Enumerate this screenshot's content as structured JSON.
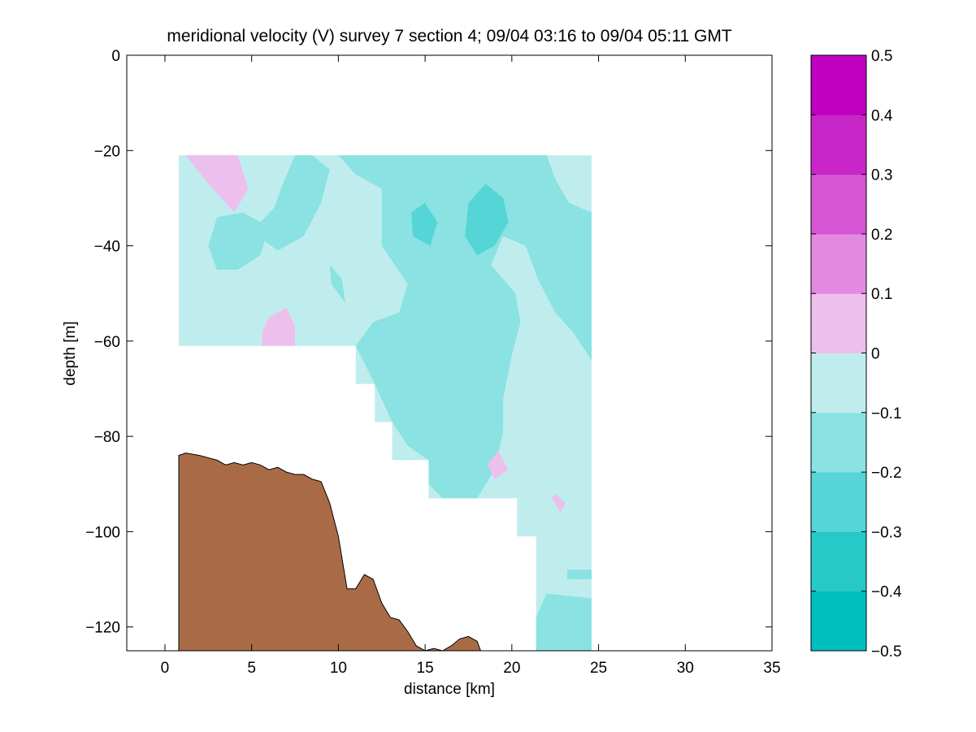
{
  "chart_data": {
    "type": "contour",
    "title": "meridional velocity (V) survey 7 section 4; 09/04 03:16 to 09/04 05:11 GMT",
    "xlabel": "distance [km]",
    "ylabel": "depth [m]",
    "xlim": [
      -2.2,
      35
    ],
    "ylim": [
      -125,
      0
    ],
    "xticks": [
      0,
      5,
      10,
      15,
      20,
      25,
      30,
      35
    ],
    "xtick_labels": [
      "0",
      "5",
      "10",
      "15",
      "20",
      "25",
      "30",
      "35"
    ],
    "yticks": [
      0,
      -20,
      -40,
      -60,
      -80,
      -100,
      -120
    ],
    "ytick_labels": [
      "0",
      "−20",
      "−40",
      "−60",
      "−80",
      "−100",
      "−120"
    ],
    "grid": false,
    "colorbar": {
      "levels": [
        -0.5,
        -0.4,
        -0.3,
        -0.2,
        -0.1,
        0,
        0.1,
        0.2,
        0.3,
        0.4,
        0.5
      ],
      "tick_labels": [
        "−0.5",
        "−0.4",
        "−0.3",
        "−0.2",
        "−0.1",
        "0",
        "0.1",
        "0.2",
        "0.3",
        "0.4",
        "0.5"
      ],
      "colors": [
        "#00bfbf",
        "#26c8c8",
        "#55d5d5",
        "#8ae2e2",
        "#bfeded",
        "#edbfed",
        "#e28ae2",
        "#d555d5",
        "#c826c8",
        "#bf00bf"
      ]
    },
    "data_region": {
      "x_range_km": [
        0.8,
        24.6
      ],
      "top_depth_m": -21,
      "lower_boundary": [
        [
          0.8,
          -61
        ],
        [
          11,
          -61
        ],
        [
          11,
          -69
        ],
        [
          12.1,
          -69
        ],
        [
          12.1,
          -77
        ],
        [
          13.1,
          -77
        ],
        [
          13.1,
          -85
        ],
        [
          15.2,
          -85
        ],
        [
          15.2,
          -93
        ],
        [
          20.3,
          -93
        ],
        [
          20.3,
          -101
        ],
        [
          21.4,
          -101
        ],
        [
          21.4,
          -125
        ]
      ],
      "background_level": "-0.1 to 0",
      "regions": [
        {
          "level": "-0.2 to -0.1",
          "polygon": [
            [
              10,
              -21
            ],
            [
              13,
              -21
            ],
            [
              17,
              -21
            ],
            [
              20.5,
              -21
            ],
            [
              22,
              -21
            ],
            [
              22.5,
              -26
            ],
            [
              23.3,
              -31
            ],
            [
              24.6,
              -33
            ],
            [
              24.6,
              -50
            ],
            [
              24.6,
              -64
            ],
            [
              23.5,
              -58
            ],
            [
              22.5,
              -54
            ],
            [
              21.5,
              -47
            ],
            [
              20.8,
              -40
            ],
            [
              19.5,
              -38
            ],
            [
              18.8,
              -44
            ],
            [
              20.2,
              -50
            ],
            [
              20.5,
              -56
            ],
            [
              20,
              -63
            ],
            [
              19.5,
              -72
            ],
            [
              19.5,
              -79
            ],
            [
              19,
              -87
            ],
            [
              18,
              -93
            ],
            [
              16,
              -93
            ],
            [
              15.2,
              -90
            ],
            [
              15.2,
              -85
            ],
            [
              14,
              -82
            ],
            [
              13.1,
              -77
            ],
            [
              12.1,
              -69
            ],
            [
              11,
              -61
            ],
            [
              12,
              -56
            ],
            [
              13.5,
              -54
            ],
            [
              14,
              -48
            ],
            [
              12.5,
              -40
            ],
            [
              12.5,
              -33
            ],
            [
              12.5,
              -28
            ],
            [
              11,
              -25
            ]
          ]
        },
        {
          "level": "-0.2 to -0.1",
          "polygon": [
            [
              7.5,
              -21
            ],
            [
              8.5,
              -21
            ],
            [
              9.5,
              -24
            ],
            [
              9,
              -31
            ],
            [
              8,
              -38
            ],
            [
              6.5,
              -41
            ],
            [
              5,
              -37
            ],
            [
              6.3,
              -32
            ],
            [
              6.8,
              -27
            ]
          ]
        },
        {
          "level": "-0.2 to -0.1",
          "polygon": [
            [
              3,
              -34
            ],
            [
              4.5,
              -33
            ],
            [
              6,
              -36
            ],
            [
              5.5,
              -42
            ],
            [
              4.2,
              -45
            ],
            [
              3,
              -45
            ],
            [
              2.5,
              -40
            ]
          ]
        },
        {
          "level": "-0.2 to -0.1",
          "polygon": [
            [
              9.5,
              -44
            ],
            [
              10.2,
              -47
            ],
            [
              10.4,
              -52
            ],
            [
              9.6,
              -48
            ]
          ]
        },
        {
          "level": "-0.2 to -0.1",
          "polygon": [
            [
              22,
              -113
            ],
            [
              24.6,
              -114
            ],
            [
              24.6,
              -125
            ],
            [
              21.4,
              -125
            ],
            [
              21.4,
              -118
            ]
          ]
        },
        {
          "level": "-0.2 to -0.1",
          "polygon": [
            [
              23.2,
              -108
            ],
            [
              24.6,
              -108
            ],
            [
              24.6,
              -110
            ],
            [
              23.2,
              -110
            ]
          ]
        },
        {
          "level": "-0.3 to -0.2",
          "polygon": [
            [
              17.5,
              -31
            ],
            [
              18.5,
              -27
            ],
            [
              19.5,
              -30
            ],
            [
              19.8,
              -35
            ],
            [
              19,
              -40
            ],
            [
              18,
              -42
            ],
            [
              17.3,
              -38
            ]
          ]
        },
        {
          "level": "-0.3 to -0.2",
          "polygon": [
            [
              14.2,
              -33
            ],
            [
              15,
              -31
            ],
            [
              15.7,
              -35
            ],
            [
              15.3,
              -40
            ],
            [
              14.3,
              -38
            ]
          ]
        },
        {
          "level": "0 to 0.1",
          "polygon": [
            [
              1.2,
              -21
            ],
            [
              4.2,
              -21
            ],
            [
              4.8,
              -28
            ],
            [
              4,
              -33
            ],
            [
              2.5,
              -27
            ]
          ]
        },
        {
          "level": "0 to 0.1",
          "polygon": [
            [
              6,
              -55
            ],
            [
              7,
              -53
            ],
            [
              7.5,
              -57
            ],
            [
              7.5,
              -61
            ],
            [
              5.6,
              -61
            ],
            [
              5.6,
              -58
            ]
          ]
        },
        {
          "level": "0 to 0.1",
          "polygon": [
            [
              19.2,
              -83
            ],
            [
              19.8,
              -87
            ],
            [
              19,
              -89
            ],
            [
              18.6,
              -86
            ]
          ]
        },
        {
          "level": "0 to 0.1",
          "polygon": [
            [
              22.5,
              -92
            ],
            [
              23.1,
              -94
            ],
            [
              22.8,
              -96
            ],
            [
              22.3,
              -93
            ]
          ]
        }
      ]
    },
    "bathymetry": {
      "fill_color": "#a96b46",
      "x": [
        0.8,
        1.2,
        2,
        3,
        3.5,
        4,
        4.5,
        5,
        5.5,
        6,
        6.5,
        7,
        7.5,
        8,
        8.5,
        9,
        9.5,
        10,
        10.5,
        11,
        11.5,
        12,
        12.5,
        13,
        13.5,
        14,
        14.5,
        15,
        15.5,
        16,
        16.5,
        17,
        17.5,
        18,
        18.2
      ],
      "depth": [
        -84,
        -83.5,
        -84,
        -85,
        -86,
        -85.5,
        -86,
        -85.5,
        -86,
        -87,
        -86.5,
        -87.5,
        -88,
        -88,
        -89,
        -89.5,
        -94,
        -101,
        -112,
        -112,
        -109,
        -110,
        -115,
        -118,
        -118.5,
        -121,
        -124,
        -125,
        -124.5,
        -125,
        -124,
        -122.5,
        -122,
        -123,
        -125
      ]
    }
  }
}
